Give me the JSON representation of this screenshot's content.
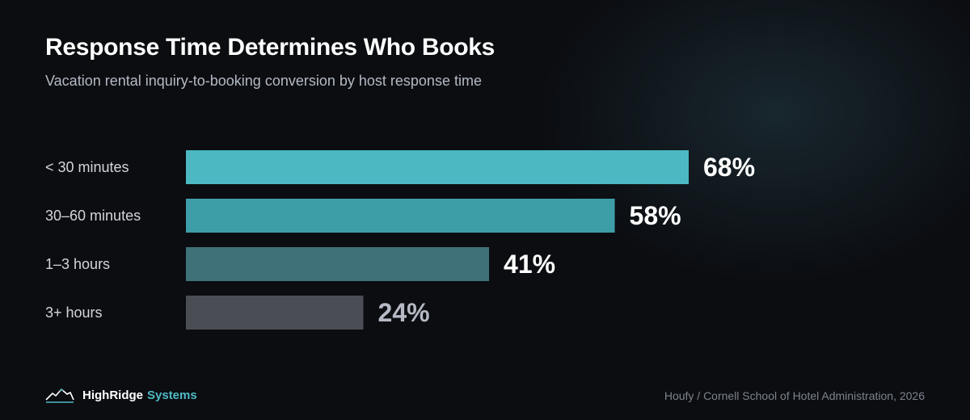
{
  "title": "Response Time Determines Who Books",
  "subtitle": "Vacation rental inquiry-to-booking conversion by host response time",
  "chart_data": {
    "type": "bar",
    "orientation": "horizontal",
    "categories": [
      "< 30 minutes",
      "30–60 minutes",
      "1–3 hours",
      "3+ hours"
    ],
    "values": [
      68,
      58,
      41,
      24
    ],
    "value_labels": [
      "68%",
      "58%",
      "41%",
      "24%"
    ],
    "bar_colors": [
      "#4bb8c2",
      "#3e9ea8",
      "#3e7278",
      "#4b4d55"
    ],
    "label_colors": [
      "#ffffff",
      "#ffffff",
      "#ffffff",
      "#b6bac4"
    ],
    "grid": false,
    "legend": "none"
  },
  "footer": {
    "brand_primary": "HighRidge",
    "brand_secondary": "Systems",
    "logo_icon": "mountain-icon",
    "source": "Houfy / Cornell School of Hotel Administration, 2026"
  }
}
